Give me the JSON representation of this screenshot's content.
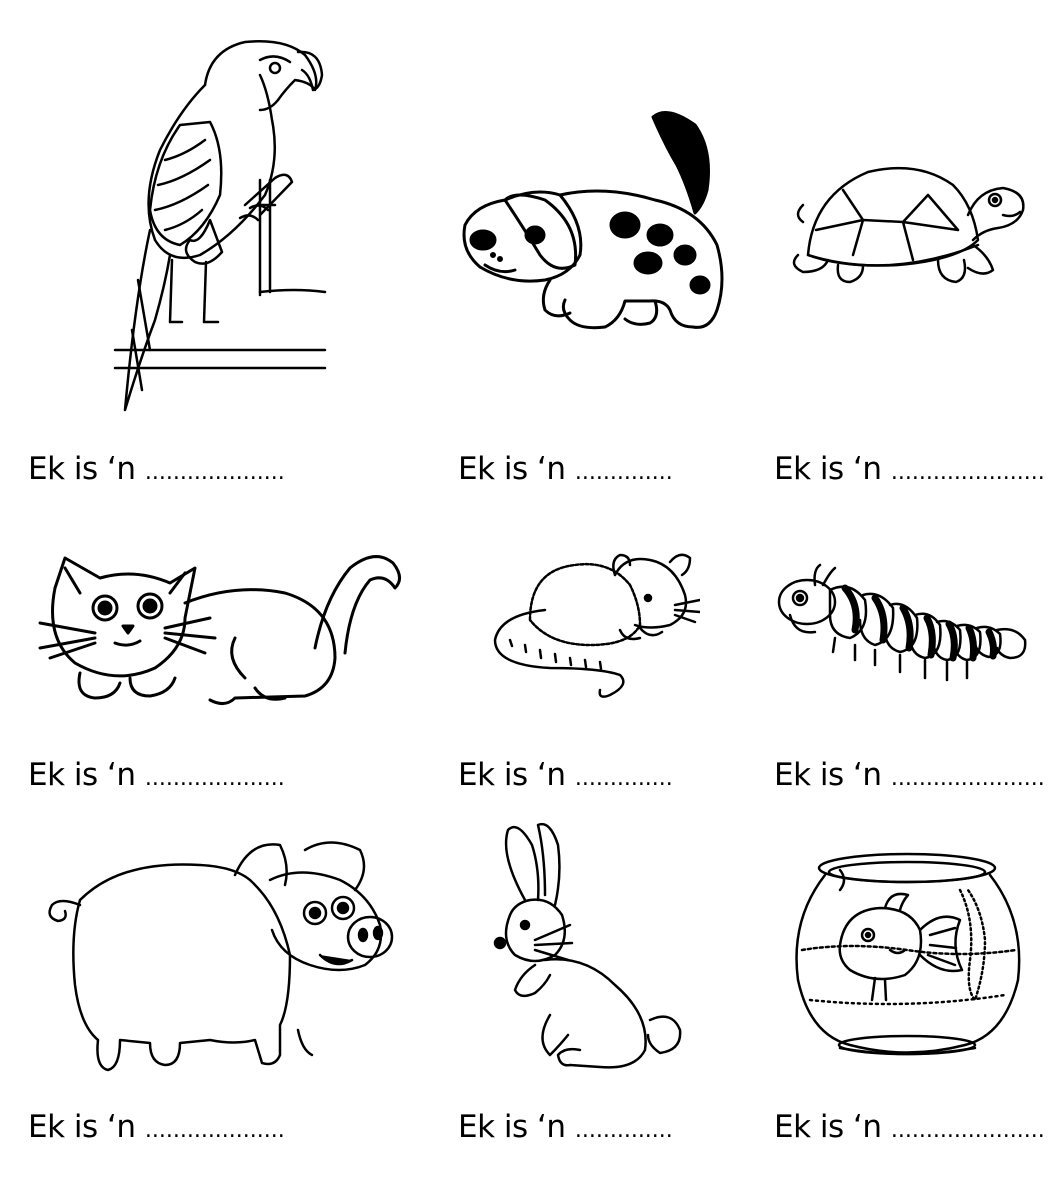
{
  "worksheet": {
    "items": [
      {
        "prompt": "Ek is ‘n",
        "blank": "...................."
      },
      {
        "prompt": "Ek is ‘n",
        "blank": ".............."
      },
      {
        "prompt": "Ek is ‘n",
        "blank": "......................"
      },
      {
        "prompt": "Ek is ‘n",
        "blank": "...................."
      },
      {
        "prompt": "Ek is ‘n",
        "blank": ".............."
      },
      {
        "prompt": "Ek is ‘n",
        "blank": "......................"
      },
      {
        "prompt": "Ek is ‘n",
        "blank": "...................."
      },
      {
        "prompt": "Ek is ‘n",
        "blank": ".............."
      },
      {
        "prompt": "Ek is ‘n",
        "blank": "......................"
      }
    ],
    "pictures": [
      "parrot",
      "dog",
      "tortoise",
      "cat",
      "mouse",
      "caterpillar",
      "pig",
      "rabbit",
      "goldfish-bowl"
    ]
  }
}
